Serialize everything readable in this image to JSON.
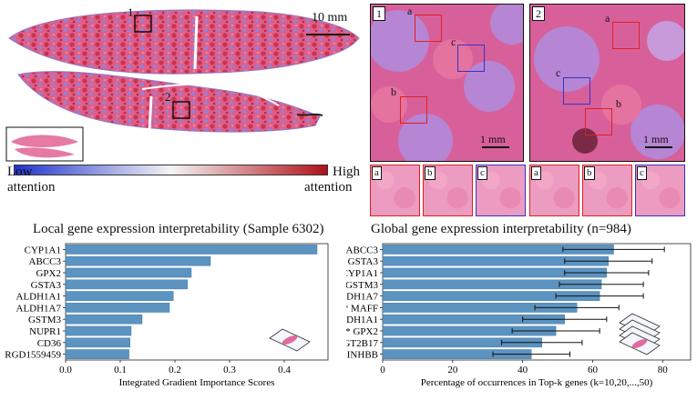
{
  "tissue": {
    "scale_label": "10 mm",
    "box_labels": [
      "1",
      "2"
    ]
  },
  "zoom_panels": [
    {
      "tag": "1",
      "scale_label": "1 mm",
      "rois": [
        "a",
        "b",
        "c"
      ]
    },
    {
      "tag": "2",
      "scale_label": "1 mm",
      "rois": [
        "a",
        "b",
        "c"
      ]
    }
  ],
  "colorbar": {
    "low_label_line1": "Low",
    "low_label_line2": "attention",
    "high_label_line1": "High",
    "high_label_line2": "attention",
    "low_color": "#2233cc",
    "mid_color": "#f4f4f4",
    "high_color": "#b0111a"
  },
  "tiles": [
    {
      "tag": "a",
      "color": "#e02020"
    },
    {
      "tag": "b",
      "color": "#e02020"
    },
    {
      "tag": "c",
      "color": "#3333cc"
    },
    {
      "tag": "a",
      "color": "#e02020"
    },
    {
      "tag": "b",
      "color": "#e02020"
    },
    {
      "tag": "c",
      "color": "#3333cc"
    }
  ],
  "chart_data": [
    {
      "type": "bar",
      "orientation": "horizontal",
      "title": "Local gene expression interpretability (Sample 6302)",
      "xlabel": "Integrated Gradient Importance Scores",
      "ylabel": "",
      "categories": [
        "CYP1A1",
        "ABCC3",
        "GPX2",
        "GSTA3",
        "ALDH1A1",
        "ALDH1A7",
        "GSTM3",
        "NUPR1",
        "CD36",
        "RGD1559459"
      ],
      "values": [
        0.46,
        0.265,
        0.23,
        0.223,
        0.197,
        0.19,
        0.14,
        0.12,
        0.118,
        0.116
      ],
      "xlim": [
        0,
        0.48
      ],
      "xticks": [
        "0.0",
        "0.1",
        "0.2",
        "0.3",
        "0.4"
      ],
      "bar_color": "#5b93c1"
    },
    {
      "type": "bar",
      "orientation": "horizontal",
      "title": "Global gene expression interpretability (n=984)",
      "xlabel": "Percentage of occurrences in Top-k genes (k=10,20,...,50)",
      "ylabel": "",
      "categories": [
        "ABCC3",
        "GSTA3",
        "CYP1A1",
        "GSTM3",
        "ALDH1A7",
        "MAFF",
        "ALDH1A1",
        "GPX2",
        "UGT2B17",
        "INHBB"
      ],
      "significance": [
        "**",
        "**",
        "***",
        "**",
        "**",
        "**",
        "**",
        "**",
        "*",
        "**"
      ],
      "values": [
        66,
        64.5,
        64,
        62.5,
        62,
        55.5,
        52,
        49.5,
        45.5,
        42.5
      ],
      "error": [
        14.5,
        12.5,
        12,
        12,
        12.5,
        12,
        12,
        12.5,
        11.5,
        11
      ],
      "xlim": [
        0,
        88
      ],
      "xticks": [
        "0",
        "20",
        "40",
        "60",
        "80"
      ],
      "bar_color": "#5b93c1"
    }
  ]
}
